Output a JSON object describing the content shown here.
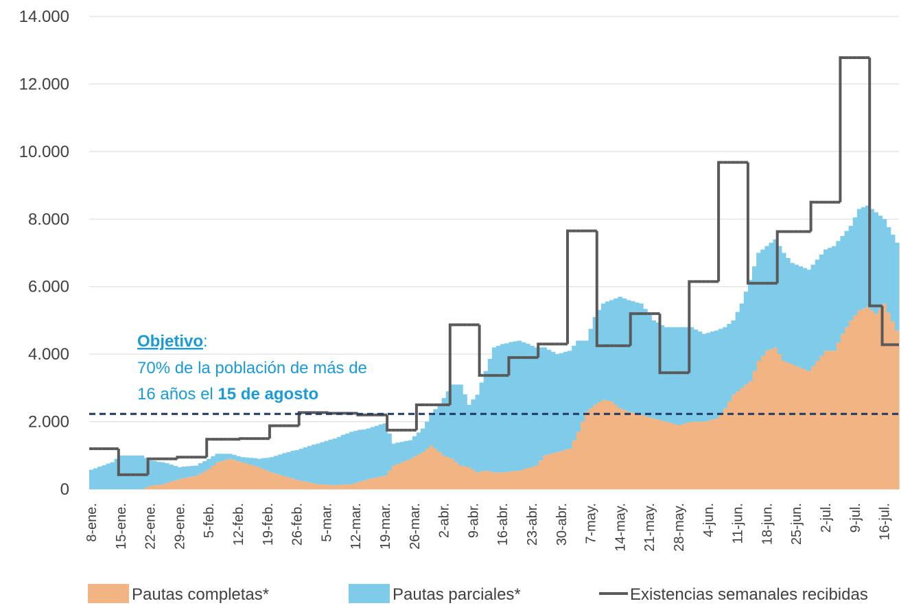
{
  "chart_data": {
    "type": "stacked_area_step",
    "ylim": [
      0,
      14000
    ],
    "yticks": [
      0,
      {
        "value": 2000,
        "label": "2.000"
      },
      {
        "value": 4000,
        "label": "4.000"
      },
      {
        "value": 6000,
        "label": "6.000"
      },
      {
        "value": 8000,
        "label": "8.000"
      },
      {
        "value": 10000,
        "label": "10.000"
      },
      {
        "value": 12000,
        "label": "12.000"
      },
      {
        "value": 14000,
        "label": "14.000"
      }
    ],
    "grid": true,
    "categories": [
      "8-ene.",
      null,
      null,
      null,
      null,
      null,
      null,
      "15-ene.",
      null,
      null,
      null,
      null,
      null,
      null,
      "22-ene.",
      null,
      null,
      null,
      null,
      null,
      null,
      "29-ene.",
      null,
      null,
      null,
      null,
      null,
      null,
      "5-feb.",
      null,
      null,
      null,
      null,
      null,
      null,
      "12-feb.",
      null,
      null,
      null,
      null,
      null,
      null,
      "19-feb.",
      null,
      null,
      null,
      null,
      null,
      null,
      "26-feb.",
      null,
      null,
      null,
      null,
      null,
      null,
      "5-mar.",
      null,
      null,
      null,
      null,
      null,
      null,
      "12-mar.",
      null,
      null,
      null,
      null,
      null,
      null,
      "19-mar.",
      null,
      null,
      null,
      null,
      null,
      null,
      "26-mar.",
      null,
      null,
      null,
      null,
      null,
      null,
      "2-abr.",
      null,
      null,
      null,
      null,
      null,
      null,
      "9-abr.",
      null,
      null,
      null,
      null,
      null,
      null,
      "16-abr.",
      null,
      null,
      null,
      null,
      null,
      null,
      "23-abr.",
      null,
      null,
      null,
      null,
      null,
      null,
      "30-abr.",
      null,
      null,
      null,
      null,
      null,
      null,
      "7-may.",
      null,
      null,
      null,
      null,
      null,
      null,
      "14-may.",
      null,
      null,
      null,
      null,
      null,
      null,
      "21-may.",
      null,
      null,
      null,
      null,
      null,
      null,
      "28-may.",
      null,
      null,
      null,
      null,
      null,
      null,
      "4-jun.",
      null,
      null,
      null,
      null,
      null,
      null,
      "11-jun.",
      null,
      null,
      null,
      null,
      null,
      null,
      "18-jun.",
      null,
      null,
      null,
      null,
      null,
      null,
      "25-jun.",
      null,
      null,
      null,
      null,
      null,
      null,
      "2-jul.",
      null,
      null,
      null,
      null,
      null,
      null,
      "9-jul.",
      null,
      null,
      null,
      null,
      null,
      null,
      "16-jul.",
      null,
      null,
      null
    ],
    "series": [
      {
        "name": "Pautas completas*",
        "kind": "area",
        "color": "#f2b482",
        "values": [
          0,
          0,
          0,
          0,
          0,
          0,
          0,
          0,
          0,
          0,
          0,
          0,
          0,
          50,
          100,
          120,
          130,
          150,
          190,
          230,
          260,
          300,
          330,
          350,
          380,
          400,
          470,
          530,
          600,
          700,
          800,
          830,
          870,
          900,
          870,
          830,
          800,
          760,
          730,
          690,
          650,
          600,
          550,
          500,
          460,
          430,
          390,
          350,
          320,
          280,
          250,
          230,
          200,
          180,
          150,
          140,
          140,
          130,
          120,
          130,
          140,
          140,
          150,
          190,
          230,
          260,
          300,
          330,
          350,
          380,
          400,
          550,
          700,
          750,
          800,
          850,
          900,
          970,
          1030,
          1100,
          1200,
          1300,
          1200,
          1100,
          1000,
          950,
          900,
          800,
          700,
          680,
          650,
          580,
          500,
          530,
          550,
          530,
          500,
          500,
          500,
          510,
          530,
          540,
          550,
          590,
          630,
          660,
          700,
          850,
          1000,
          1030,
          1070,
          1100,
          1130,
          1170,
          1200,
          1450,
          1700,
          2000,
          2300,
          2400,
          2500,
          2580,
          2650,
          2630,
          2600,
          2500,
          2400,
          2350,
          2300,
          2270,
          2230,
          2200,
          2170,
          2130,
          2100,
          2070,
          2030,
          2000,
          1970,
          1930,
          1900,
          1930,
          1970,
          2000,
          2000,
          2000,
          2000,
          2030,
          2070,
          2100,
          2250,
          2400,
          2600,
          2800,
          2900,
          3000,
          3100,
          3200,
          3500,
          3800,
          3950,
          4100,
          4150,
          4200,
          4000,
          3800,
          3750,
          3700,
          3650,
          3600,
          3550,
          3500,
          3650,
          3800,
          3950,
          4100,
          4100,
          4100,
          4350,
          4600,
          4800,
          5000,
          5150,
          5300,
          5350,
          5400,
          5300,
          5200,
          5350,
          5500,
          5230,
          4970,
          4700
        ]
      },
      {
        "name": "Pautas parciales*",
        "kind": "area",
        "color": "#7ecbea",
        "values": [
          580,
          620,
          670,
          710,
          760,
          800,
          900,
          1000,
          1000,
          1000,
          1000,
          1000,
          1000,
          880,
          750,
          720,
          680,
          650,
          580,
          500,
          430,
          350,
          340,
          330,
          310,
          300,
          300,
          300,
          300,
          280,
          250,
          220,
          180,
          150,
          150,
          150,
          150,
          180,
          200,
          230,
          250,
          320,
          380,
          450,
          530,
          600,
          680,
          750,
          820,
          880,
          950,
          1010,
          1080,
          1140,
          1200,
          1250,
          1290,
          1340,
          1380,
          1420,
          1470,
          1510,
          1550,
          1540,
          1530,
          1510,
          1500,
          1510,
          1530,
          1540,
          1550,
          1100,
          650,
          630,
          600,
          580,
          550,
          600,
          650,
          700,
          800,
          900,
          1170,
          1430,
          1700,
          1950,
          2200,
          2300,
          2400,
          2130,
          1850,
          2080,
          2300,
          2630,
          2950,
          3330,
          3700,
          3750,
          3800,
          3810,
          3830,
          3840,
          3850,
          3760,
          3680,
          3590,
          3500,
          3350,
          3200,
          3100,
          3000,
          2900,
          2900,
          2900,
          2900,
          2800,
          2700,
          2400,
          2100,
          2350,
          2600,
          2730,
          2850,
          2930,
          3000,
          3150,
          3300,
          3300,
          3300,
          3300,
          3300,
          3300,
          3170,
          3030,
          2900,
          2870,
          2830,
          2800,
          2830,
          2870,
          2900,
          2870,
          2830,
          2800,
          2730,
          2670,
          2600,
          2600,
          2600,
          2600,
          2500,
          2400,
          2300,
          2200,
          2350,
          2500,
          2750,
          3000,
          3100,
          3200,
          3150,
          3100,
          3150,
          3200,
          3200,
          3200,
          3100,
          3000,
          3000,
          3000,
          3000,
          3000,
          3000,
          3000,
          3000,
          3000,
          3050,
          3100,
          3000,
          2900,
          2850,
          2800,
          2900,
          3000,
          3000,
          3000,
          3000,
          3000,
          2750,
          2500,
          2530,
          2570,
          2600
        ]
      },
      {
        "name": "Existencias semanales recibidas",
        "kind": "step",
        "color": "#595959",
        "values": [
          1200,
          1200,
          1200,
          1200,
          1200,
          1200,
          1200,
          430,
          430,
          430,
          430,
          430,
          430,
          430,
          900,
          900,
          900,
          900,
          900,
          900,
          900,
          950,
          950,
          950,
          950,
          950,
          950,
          950,
          1480,
          1480,
          1480,
          1480,
          1480,
          1480,
          1480,
          1480,
          1500,
          1500,
          1500,
          1500,
          1500,
          1500,
          1500,
          1880,
          1880,
          1880,
          1880,
          1880,
          1880,
          1880,
          2270,
          2270,
          2270,
          2270,
          2270,
          2270,
          2270,
          2250,
          2250,
          2250,
          2250,
          2250,
          2250,
          2250,
          2200,
          2200,
          2200,
          2200,
          2200,
          2200,
          2200,
          1750,
          1750,
          1750,
          1750,
          1750,
          1750,
          1750,
          2500,
          2500,
          2500,
          2500,
          2500,
          2500,
          2500,
          2500,
          4870,
          4870,
          4870,
          4870,
          4870,
          4870,
          4870,
          3370,
          3370,
          3370,
          3370,
          3370,
          3370,
          3370,
          3900,
          3900,
          3900,
          3900,
          3900,
          3900,
          3900,
          4300,
          4300,
          4300,
          4300,
          4300,
          4300,
          4300,
          7650,
          7650,
          7650,
          7650,
          7650,
          7650,
          7650,
          4250,
          4250,
          4250,
          4250,
          4250,
          4250,
          4250,
          4250,
          5200,
          5200,
          5200,
          5200,
          5200,
          5200,
          5200,
          3450,
          3450,
          3450,
          3450,
          3450,
          3450,
          3450,
          6150,
          6150,
          6150,
          6150,
          6150,
          6150,
          6150,
          9680,
          9680,
          9680,
          9680,
          9680,
          9680,
          9680,
          6100,
          6100,
          6100,
          6100,
          6100,
          6100,
          6100,
          7630,
          7630,
          7630,
          7630,
          7630,
          7630,
          7630,
          7630,
          8500,
          8500,
          8500,
          8500,
          8500,
          8500,
          8500,
          12780,
          12780,
          12780,
          12780,
          12780,
          12780,
          12780,
          5430,
          5430,
          5430,
          4280,
          4280,
          4280,
          4280
        ]
      }
    ],
    "target_line": {
      "value": 2230,
      "color": "#1f3864"
    },
    "annotation": [
      "Objetivo",
      ":",
      "70% de la población de más de",
      "16 años el ",
      "15 de agosto"
    ]
  }
}
